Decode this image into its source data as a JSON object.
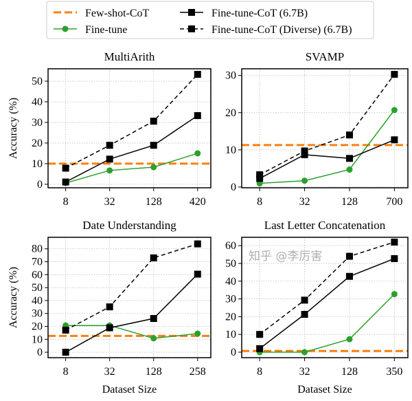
{
  "colors": {
    "few_shot": "#ff7f0e",
    "fine_tune": "#2ca02c",
    "cot": "#000000",
    "diverse": "#000000"
  },
  "legend": {
    "placement": "top",
    "entries": [
      {
        "key": "few_shot",
        "label": "Few-shot-CoT",
        "style": "dashed",
        "marker": "none"
      },
      {
        "key": "cot",
        "label": "Fine-tune-CoT (6.7B)",
        "style": "solid",
        "marker": "square"
      },
      {
        "key": "fine_tune",
        "label": "Fine-tune",
        "style": "solid",
        "marker": "circle"
      },
      {
        "key": "diverse",
        "label": "Fine-tune-CoT (Diverse) (6.7B)",
        "style": "dashed",
        "marker": "square"
      }
    ]
  },
  "watermark": "知乎 @李厉害",
  "chart_data": [
    {
      "type": "line",
      "title": "MultiArith",
      "xlabel": "",
      "ylabel": "Accuracy (%)",
      "categories": [
        "8",
        "32",
        "128",
        "420"
      ],
      "ylim": [
        -1.7,
        56
      ],
      "yticks": [
        0,
        10,
        20,
        30,
        40,
        50
      ],
      "grid": true,
      "few_shot": 10,
      "series": [
        {
          "key": "fine_tune",
          "name": "Fine-tune",
          "values": [
            0.6,
            6.7,
            8.3,
            15.0
          ]
        },
        {
          "key": "cot",
          "name": "Fine-tune-CoT (6.7B)",
          "values": [
            1.1,
            12.2,
            18.9,
            33.3
          ]
        },
        {
          "key": "diverse",
          "name": "Fine-tune-CoT (Diverse) (6.7B)",
          "values": [
            7.8,
            18.9,
            30.6,
            53.3
          ]
        }
      ]
    },
    {
      "type": "line",
      "title": "SVAMP",
      "xlabel": "",
      "ylabel": "",
      "categories": [
        "8",
        "32",
        "128",
        "700"
      ],
      "ylim": [
        -0.2,
        31.8
      ],
      "yticks": [
        0,
        10,
        20,
        30
      ],
      "grid": true,
      "few_shot": 11.3,
      "series": [
        {
          "key": "fine_tune",
          "name": "Fine-tune",
          "values": [
            1.0,
            1.7,
            4.7,
            20.7
          ]
        },
        {
          "key": "cot",
          "name": "Fine-tune-CoT (6.7B)",
          "values": [
            2.3,
            8.7,
            7.7,
            12.7
          ]
        },
        {
          "key": "diverse",
          "name": "Fine-tune-CoT (Diverse) (6.7B)",
          "values": [
            3.3,
            9.7,
            14.0,
            30.3
          ]
        }
      ]
    },
    {
      "type": "line",
      "title": "Date Understanding",
      "xlabel": "Dataset Size",
      "ylabel": "Accuracy (%)",
      "categories": [
        "8",
        "32",
        "128",
        "258"
      ],
      "ylim": [
        -4.2,
        88.9
      ],
      "yticks": [
        0,
        10,
        20,
        30,
        40,
        50,
        60,
        70,
        80
      ],
      "grid": true,
      "few_shot": 12.6,
      "series": [
        {
          "key": "fine_tune",
          "name": "Fine-tune",
          "values": [
            20.7,
            20.7,
            10.8,
            14.4
          ]
        },
        {
          "key": "cot",
          "name": "Fine-tune-CoT (6.7B)",
          "values": [
            0.0,
            18.9,
            26.1,
            60.4
          ]
        },
        {
          "key": "diverse",
          "name": "Fine-tune-CoT (Diverse) (6.7B)",
          "values": [
            17.1,
            35.1,
            73.0,
            83.8
          ]
        }
      ]
    },
    {
      "type": "line",
      "title": "Last Letter Concatenation",
      "xlabel": "Dataset Size",
      "ylabel": "",
      "categories": [
        "8",
        "32",
        "128",
        "350"
      ],
      "ylim": [
        -3.1,
        64.7
      ],
      "yticks": [
        0,
        10,
        20,
        30,
        40,
        50,
        60
      ],
      "grid": true,
      "few_shot": 0.7,
      "series": [
        {
          "key": "fine_tune",
          "name": "Fine-tune",
          "values": [
            0.0,
            0.0,
            7.3,
            32.7
          ]
        },
        {
          "key": "cot",
          "name": "Fine-tune-CoT (6.7B)",
          "values": [
            2.0,
            21.3,
            42.7,
            52.7
          ]
        },
        {
          "key": "diverse",
          "name": "Fine-tune-CoT (Diverse) (6.7B)",
          "values": [
            10.0,
            29.3,
            54.0,
            62.0
          ]
        }
      ]
    }
  ]
}
